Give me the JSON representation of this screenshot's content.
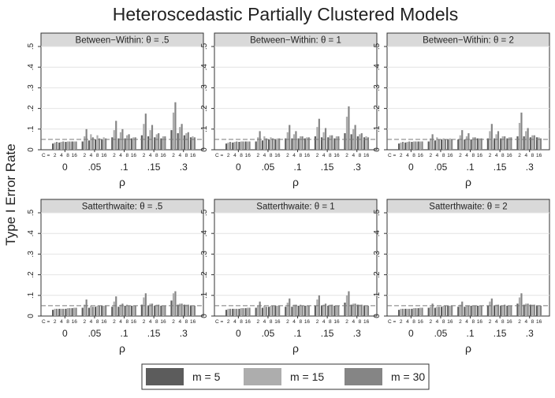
{
  "chart_data": {
    "type": "bar",
    "title": "Heteroscedastic Partially Clustered Models",
    "ylabel": "Type I Error Rate",
    "xlabel": "ρ",
    "ylim": [
      0,
      0.5
    ],
    "yticks": [
      0,
      0.1,
      0.2,
      0.3,
      0.4,
      0.5
    ],
    "ytick_labels": [
      "0",
      ".1",
      ".2",
      ".3",
      ".4",
      ".5"
    ],
    "reference_line": 0.05,
    "grid": true,
    "legend_position": "bottom",
    "rho_groups": [
      "0",
      ".05",
      ".1",
      ".15",
      ".3"
    ],
    "c_values": [
      "2",
      "4",
      "8",
      "16"
    ],
    "c_axis_prefix": "C =",
    "series_colors": [
      "#5c5c5c",
      "#adadad",
      "#858585"
    ],
    "legend": [
      {
        "label": "m = 5",
        "color": "#5c5c5c"
      },
      {
        "label": "m = 15",
        "color": "#adadad"
      },
      {
        "label": "m = 30",
        "color": "#858585"
      }
    ],
    "panels": [
      {
        "title": "Between−Within: θ = .5",
        "values": [
          [
            [
              0.03,
              0.035,
              0.038
            ],
            [
              0.035,
              0.038,
              0.04
            ],
            [
              0.038,
              0.04,
              0.04
            ],
            [
              0.04,
              0.04,
              0.04
            ]
          ],
          [
            [
              0.04,
              0.065,
              0.1
            ],
            [
              0.045,
              0.075,
              0.06
            ],
            [
              0.05,
              0.07,
              0.055
            ],
            [
              0.05,
              0.06,
              0.055
            ]
          ],
          [
            [
              0.06,
              0.095,
              0.14
            ],
            [
              0.055,
              0.085,
              0.1
            ],
            [
              0.055,
              0.07,
              0.075
            ],
            [
              0.055,
              0.06,
              0.06
            ]
          ],
          [
            [
              0.07,
              0.125,
              0.175
            ],
            [
              0.065,
              0.095,
              0.12
            ],
            [
              0.06,
              0.075,
              0.08
            ],
            [
              0.055,
              0.065,
              0.065
            ]
          ],
          [
            [
              0.095,
              0.18,
              0.23
            ],
            [
              0.08,
              0.11,
              0.125
            ],
            [
              0.07,
              0.08,
              0.085
            ],
            [
              0.06,
              0.065,
              0.06
            ]
          ]
        ]
      },
      {
        "title": "Between−Within: θ = 1",
        "values": [
          [
            [
              0.03,
              0.035,
              0.038
            ],
            [
              0.035,
              0.038,
              0.04
            ],
            [
              0.038,
              0.04,
              0.04
            ],
            [
              0.04,
              0.04,
              0.04
            ]
          ],
          [
            [
              0.04,
              0.06,
              0.09
            ],
            [
              0.045,
              0.065,
              0.055
            ],
            [
              0.05,
              0.06,
              0.055
            ],
            [
              0.05,
              0.055,
              0.055
            ]
          ],
          [
            [
              0.055,
              0.085,
              0.12
            ],
            [
              0.055,
              0.075,
              0.09
            ],
            [
              0.055,
              0.065,
              0.065
            ],
            [
              0.055,
              0.06,
              0.06
            ]
          ],
          [
            [
              0.065,
              0.11,
              0.15
            ],
            [
              0.06,
              0.085,
              0.105
            ],
            [
              0.06,
              0.07,
              0.07
            ],
            [
              0.055,
              0.065,
              0.065
            ]
          ],
          [
            [
              0.08,
              0.16,
              0.21
            ],
            [
              0.075,
              0.1,
              0.12
            ],
            [
              0.065,
              0.075,
              0.08
            ],
            [
              0.06,
              0.065,
              0.06
            ]
          ]
        ]
      },
      {
        "title": "Between−Within: θ = 2",
        "values": [
          [
            [
              0.03,
              0.035,
              0.038
            ],
            [
              0.035,
              0.038,
              0.04
            ],
            [
              0.038,
              0.04,
              0.04
            ],
            [
              0.04,
              0.04,
              0.04
            ]
          ],
          [
            [
              0.04,
              0.055,
              0.075
            ],
            [
              0.045,
              0.06,
              0.05
            ],
            [
              0.05,
              0.055,
              0.05
            ],
            [
              0.05,
              0.055,
              0.05
            ]
          ],
          [
            [
              0.05,
              0.07,
              0.095
            ],
            [
              0.05,
              0.065,
              0.08
            ],
            [
              0.05,
              0.06,
              0.06
            ],
            [
              0.055,
              0.055,
              0.055
            ]
          ],
          [
            [
              0.055,
              0.09,
              0.125
            ],
            [
              0.055,
              0.075,
              0.09
            ],
            [
              0.055,
              0.065,
              0.065
            ],
            [
              0.055,
              0.06,
              0.06
            ]
          ],
          [
            [
              0.065,
              0.13,
              0.18
            ],
            [
              0.065,
              0.09,
              0.105
            ],
            [
              0.06,
              0.07,
              0.07
            ],
            [
              0.06,
              0.06,
              0.055
            ]
          ]
        ]
      },
      {
        "title": "Satterthwaite: θ = .5",
        "values": [
          [
            [
              0.03,
              0.035,
              0.035
            ],
            [
              0.035,
              0.035,
              0.035
            ],
            [
              0.035,
              0.038,
              0.038
            ],
            [
              0.038,
              0.04,
              0.04
            ]
          ],
          [
            [
              0.04,
              0.055,
              0.08
            ],
            [
              0.04,
              0.05,
              0.045
            ],
            [
              0.045,
              0.05,
              0.05
            ],
            [
              0.05,
              0.05,
              0.05
            ]
          ],
          [
            [
              0.045,
              0.07,
              0.095
            ],
            [
              0.045,
              0.055,
              0.06
            ],
            [
              0.05,
              0.055,
              0.05
            ],
            [
              0.05,
              0.05,
              0.05
            ]
          ],
          [
            [
              0.055,
              0.09,
              0.11
            ],
            [
              0.05,
              0.06,
              0.06
            ],
            [
              0.05,
              0.055,
              0.055
            ],
            [
              0.05,
              0.05,
              0.05
            ]
          ],
          [
            [
              0.075,
              0.11,
              0.12
            ],
            [
              0.055,
              0.06,
              0.06
            ],
            [
              0.055,
              0.055,
              0.055
            ],
            [
              0.05,
              0.05,
              0.05
            ]
          ]
        ]
      },
      {
        "title": "Satterthwaite: θ = 1",
        "values": [
          [
            [
              0.03,
              0.035,
              0.035
            ],
            [
              0.035,
              0.035,
              0.035
            ],
            [
              0.035,
              0.038,
              0.038
            ],
            [
              0.038,
              0.04,
              0.04
            ]
          ],
          [
            [
              0.04,
              0.05,
              0.07
            ],
            [
              0.04,
              0.05,
              0.045
            ],
            [
              0.045,
              0.05,
              0.05
            ],
            [
              0.05,
              0.05,
              0.05
            ]
          ],
          [
            [
              0.045,
              0.065,
              0.085
            ],
            [
              0.045,
              0.055,
              0.055
            ],
            [
              0.05,
              0.055,
              0.05
            ],
            [
              0.05,
              0.05,
              0.05
            ]
          ],
          [
            [
              0.05,
              0.08,
              0.1
            ],
            [
              0.05,
              0.055,
              0.06
            ],
            [
              0.05,
              0.055,
              0.055
            ],
            [
              0.05,
              0.05,
              0.05
            ]
          ],
          [
            [
              0.065,
              0.1,
              0.12
            ],
            [
              0.055,
              0.06,
              0.06
            ],
            [
              0.055,
              0.055,
              0.055
            ],
            [
              0.05,
              0.05,
              0.05
            ]
          ]
        ]
      },
      {
        "title": "Satterthwaite: θ = 2",
        "values": [
          [
            [
              0.03,
              0.035,
              0.035
            ],
            [
              0.035,
              0.035,
              0.035
            ],
            [
              0.035,
              0.038,
              0.038
            ],
            [
              0.038,
              0.04,
              0.04
            ]
          ],
          [
            [
              0.04,
              0.045,
              0.06
            ],
            [
              0.04,
              0.045,
              0.045
            ],
            [
              0.045,
              0.05,
              0.05
            ],
            [
              0.05,
              0.05,
              0.05
            ]
          ],
          [
            [
              0.045,
              0.055,
              0.07
            ],
            [
              0.045,
              0.05,
              0.05
            ],
            [
              0.05,
              0.05,
              0.05
            ],
            [
              0.05,
              0.05,
              0.05
            ]
          ],
          [
            [
              0.05,
              0.07,
              0.085
            ],
            [
              0.05,
              0.055,
              0.055
            ],
            [
              0.05,
              0.05,
              0.055
            ],
            [
              0.05,
              0.05,
              0.05
            ]
          ],
          [
            [
              0.06,
              0.09,
              0.11
            ],
            [
              0.055,
              0.06,
              0.06
            ],
            [
              0.055,
              0.055,
              0.055
            ],
            [
              0.05,
              0.05,
              0.05
            ]
          ]
        ]
      }
    ]
  }
}
